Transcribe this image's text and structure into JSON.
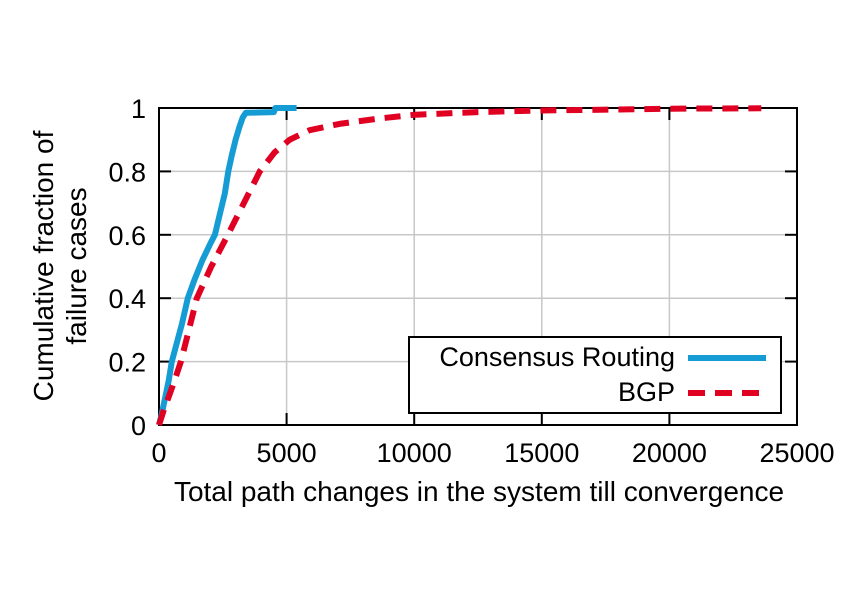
{
  "chart_data": {
    "type": "line",
    "title": "",
    "xlabel": "Total path changes in the system till convergence",
    "ylabel_lines": [
      "Cumulative fraction of",
      "failure cases"
    ],
    "xlim": [
      0,
      25000
    ],
    "ylim": [
      0,
      1
    ],
    "xticks": [
      0,
      5000,
      10000,
      15000,
      20000,
      25000
    ],
    "yticks": [
      0,
      0.2,
      0.4,
      0.6,
      0.8,
      1
    ],
    "grid": true,
    "legend_position": "inside-right-middle",
    "colors": {
      "axis": "#000000",
      "grid": "#c8c8c8",
      "background": "#ffffff"
    },
    "series": [
      {
        "name": "Consensus Routing",
        "color": "#169cd4",
        "style": "solid",
        "points": [
          [
            0,
            0
          ],
          [
            120,
            0.04
          ],
          [
            250,
            0.09
          ],
          [
            380,
            0.14
          ],
          [
            500,
            0.2
          ],
          [
            700,
            0.26
          ],
          [
            900,
            0.32
          ],
          [
            1130,
            0.4
          ],
          [
            1400,
            0.46
          ],
          [
            1700,
            0.52
          ],
          [
            2000,
            0.57
          ],
          [
            2190,
            0.6
          ],
          [
            2400,
            0.67
          ],
          [
            2580,
            0.73
          ],
          [
            2715,
            0.8
          ],
          [
            2850,
            0.85
          ],
          [
            3000,
            0.9
          ],
          [
            3150,
            0.94
          ],
          [
            3280,
            0.97
          ],
          [
            3400,
            0.985
          ],
          [
            4500,
            0.987
          ],
          [
            4560,
            1.0
          ],
          [
            5390,
            1.0
          ]
        ]
      },
      {
        "name": "BGP",
        "color": "#e00022",
        "style": "dashed",
        "points": [
          [
            0,
            0
          ],
          [
            200,
            0.05
          ],
          [
            430,
            0.1
          ],
          [
            650,
            0.15
          ],
          [
            860,
            0.2
          ],
          [
            1170,
            0.3
          ],
          [
            1480,
            0.4
          ],
          [
            2050,
            0.5
          ],
          [
            2700,
            0.6
          ],
          [
            3200,
            0.68
          ],
          [
            3950,
            0.8
          ],
          [
            4530,
            0.86
          ],
          [
            5120,
            0.9
          ],
          [
            5900,
            0.93
          ],
          [
            7070,
            0.95
          ],
          [
            8630,
            0.967
          ],
          [
            10040,
            0.979
          ],
          [
            12500,
            0.987
          ],
          [
            15000,
            0.992
          ],
          [
            17600,
            0.995
          ],
          [
            20500,
            0.998
          ],
          [
            23600,
            0.999
          ]
        ]
      }
    ]
  }
}
